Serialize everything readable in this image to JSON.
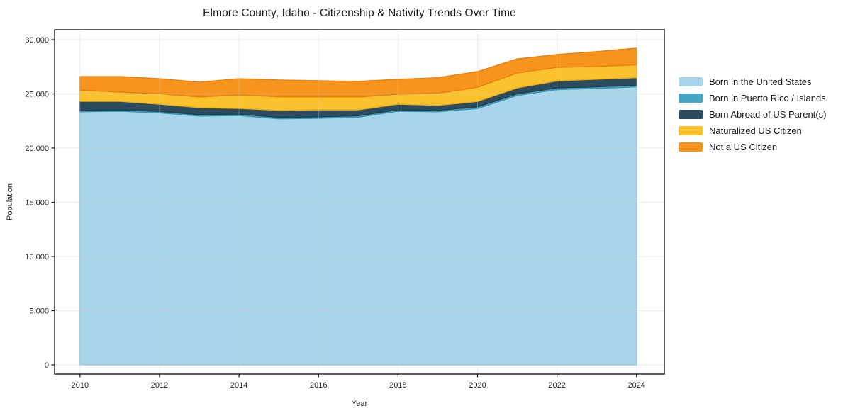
{
  "chart_data": {
    "type": "area",
    "stacked": true,
    "title": "Elmore County, Idaho - Citizenship & Nativity Trends Over Time",
    "xlabel": "Year",
    "ylabel": "Population",
    "x": [
      2010,
      2011,
      2012,
      2013,
      2014,
      2015,
      2016,
      2017,
      2018,
      2019,
      2020,
      2021,
      2022,
      2023,
      2024
    ],
    "series": [
      {
        "name": "Born in the United States",
        "color": "#a8d5e9",
        "edge_color": "#90c6dd",
        "values": [
          23350,
          23400,
          23250,
          22950,
          23000,
          22700,
          22750,
          22850,
          23400,
          23350,
          23650,
          24850,
          25400,
          25500,
          25650
        ]
      },
      {
        "name": "Born in Puerto Rico / Islands",
        "color": "#42a6c5",
        "edge_color": "#3795b2",
        "values": [
          130,
          130,
          130,
          130,
          130,
          130,
          130,
          130,
          130,
          130,
          150,
          150,
          150,
          150,
          150
        ]
      },
      {
        "name": "Born Abroad of US Parent(s)",
        "color": "#2d4b5e",
        "edge_color": "#243d4d",
        "values": [
          830,
          780,
          670,
          650,
          530,
          650,
          650,
          550,
          520,
          460,
          500,
          550,
          650,
          700,
          700
        ]
      },
      {
        "name": "Naturalized US Citizen",
        "color": "#fcc22d",
        "edge_color": "#efad15",
        "values": [
          1050,
          850,
          980,
          980,
          1240,
          1250,
          1180,
          1180,
          920,
          1110,
          1310,
          1380,
          1250,
          1180,
          1180
        ]
      },
      {
        "name": "Not a US Citizen",
        "color": "#f7941e",
        "edge_color": "#e5800e",
        "values": [
          1240,
          1440,
          1370,
          1370,
          1500,
          1550,
          1500,
          1440,
          1370,
          1440,
          1450,
          1300,
          1180,
          1370,
          1540
        ]
      }
    ],
    "xticks": [
      2010,
      2012,
      2014,
      2016,
      2018,
      2020,
      2022,
      2024
    ],
    "yticks": [
      0,
      5000,
      10000,
      15000,
      20000,
      25000,
      30000
    ],
    "xlim": [
      2009.36,
      2024.7
    ],
    "ylim": [
      -850,
      30915
    ],
    "grid": true,
    "grid_above_areas": true,
    "legend_position": "right-outside",
    "colors": {
      "background": "#ffffff",
      "grid": "#cccccc",
      "spine": "#1a1a1a",
      "tick_text": "#262626"
    }
  }
}
